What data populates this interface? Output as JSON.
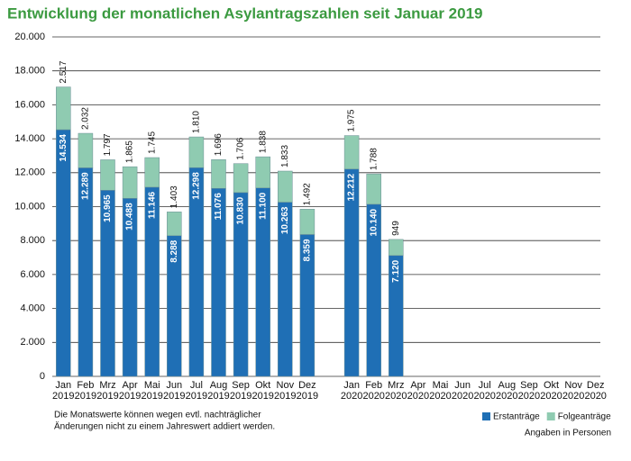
{
  "chart_data": {
    "type": "stacked-bar",
    "title": "Entwicklung der monatlichen Asylantragszahlen seit Januar 2019",
    "categories": [
      [
        "Jan",
        "2019"
      ],
      [
        "Feb",
        "2019"
      ],
      [
        "Mrz",
        "2019"
      ],
      [
        "Apr",
        "2019"
      ],
      [
        "Mai",
        "2019"
      ],
      [
        "Jun",
        "2019"
      ],
      [
        "Jul",
        "2019"
      ],
      [
        "Aug",
        "2019"
      ],
      [
        "Sep",
        "2019"
      ],
      [
        "Okt",
        "2019"
      ],
      [
        "Nov",
        "2019"
      ],
      [
        "Dez",
        "2019"
      ],
      null,
      [
        "Jan",
        "2020"
      ],
      [
        "Feb",
        "2020"
      ],
      [
        "Mrz",
        "2020"
      ],
      [
        "Apr",
        "2020"
      ],
      [
        "Mai",
        "2020"
      ],
      [
        "Jun",
        "2020"
      ],
      [
        "Jul",
        "2020"
      ],
      [
        "Aug",
        "2020"
      ],
      [
        "Sep",
        "2020"
      ],
      [
        "Okt",
        "2020"
      ],
      [
        "Nov",
        "2020"
      ],
      [
        "Dez",
        "2020"
      ]
    ],
    "series": [
      {
        "name": "Erstanträge",
        "color": "#1f6fb5",
        "values": [
          14534,
          12289,
          10965,
          10488,
          11146,
          8288,
          12298,
          11076,
          10830,
          11100,
          10263,
          8359,
          null,
          12212,
          10140,
          7120,
          null,
          null,
          null,
          null,
          null,
          null,
          null,
          null,
          null
        ],
        "value_labels": [
          "14.534",
          "12.289",
          "10.965",
          "10.488",
          "11.146",
          "8.288",
          "12.298",
          "11.076",
          "10.830",
          "11.100",
          "10.263",
          "8.359",
          null,
          "12.212",
          "10.140",
          "7.120",
          null,
          null,
          null,
          null,
          null,
          null,
          null,
          null,
          null
        ]
      },
      {
        "name": "Folgeanträge",
        "color": "#8fcbb1",
        "values": [
          2517,
          2032,
          1797,
          1865,
          1745,
          1403,
          1810,
          1696,
          1706,
          1838,
          1833,
          1492,
          null,
          1975,
          1788,
          949,
          null,
          null,
          null,
          null,
          null,
          null,
          null,
          null,
          null
        ],
        "value_labels": [
          "2.517",
          "2.032",
          "1.797",
          "1.865",
          "1.745",
          "1.403",
          "1.810",
          "1.696",
          "1.706",
          "1.838",
          "1.833",
          "1.492",
          null,
          "1.975",
          "1.788",
          "949",
          null,
          null,
          null,
          null,
          null,
          null,
          null,
          null,
          null
        ]
      }
    ],
    "ylim": [
      0,
      20000
    ],
    "yticks": [
      0,
      {
        "value": 2000,
        "label": "2.000"
      },
      {
        "value": 4000,
        "label": "4.000"
      },
      {
        "value": 6000,
        "label": "6.000"
      },
      {
        "value": 8000,
        "label": "8.000"
      },
      {
        "value": 10000,
        "label": "10.000"
      },
      {
        "value": 12000,
        "label": "12.000"
      },
      {
        "value": 14000,
        "label": "14.000"
      },
      {
        "value": 16000,
        "label": "16.000"
      },
      {
        "value": 18000,
        "label": "18.000"
      },
      {
        "value": 20000,
        "label": "20.000"
      }
    ],
    "grid": true,
    "legend": "bottom-right",
    "footnote": [
      "Die Monatswerte können wegen evtl. nachträglicher",
      "Änderungen nicht zu einem Jahreswert addiert werden."
    ],
    "unit_note": "Angaben in Personen"
  }
}
